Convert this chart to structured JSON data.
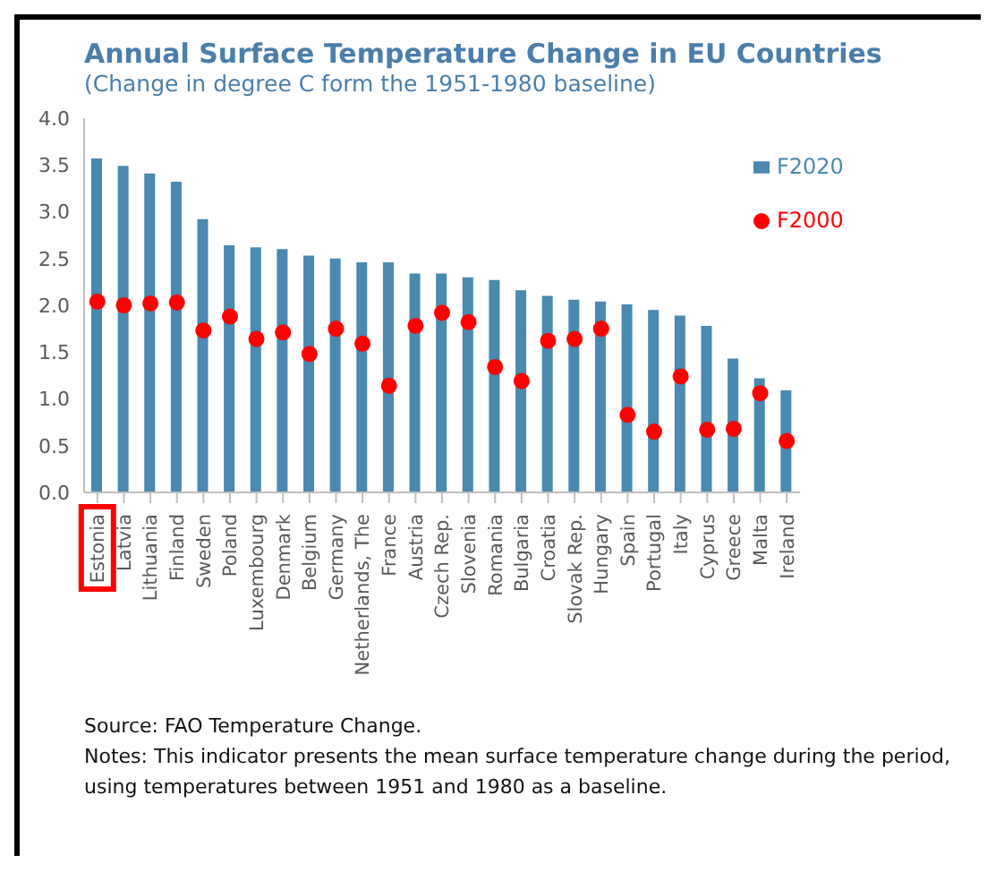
{
  "chart_data": {
    "type": "bar",
    "title": "Annual Surface Temperature Change in EU Countries",
    "subtitle": "(Change in degree C form the 1951-1980 baseline)",
    "categories": [
      "Estonia",
      "Latvia",
      "Lithuania",
      "Finland",
      "Sweden",
      "Poland",
      "Luxembourg",
      "Denmark",
      "Belgium",
      "Germany",
      "Netherlands, The",
      "France",
      "Austria",
      "Czech Rep.",
      "Slovenia",
      "Romania",
      "Bulgaria",
      "Croatia",
      "Slovak Rep.",
      "Hungary",
      "Spain",
      "Portugal",
      "Italy",
      "Cyprus",
      "Greece",
      "Malta",
      "Ireland"
    ],
    "series": [
      {
        "name": "F2020",
        "color": "#4a89b0",
        "values": [
          3.57,
          3.49,
          3.41,
          3.32,
          2.92,
          2.64,
          2.62,
          2.6,
          2.53,
          2.5,
          2.46,
          2.46,
          2.34,
          2.34,
          2.3,
          2.27,
          2.16,
          2.1,
          2.06,
          2.04,
          2.01,
          1.95,
          1.89,
          1.78,
          1.43,
          1.22,
          1.09
        ]
      },
      {
        "name": "F2000",
        "type": "scatter",
        "color": "#ff0000",
        "marker": "circle",
        "values": [
          2.04,
          2.0,
          2.02,
          2.03,
          1.73,
          1.88,
          1.64,
          1.71,
          1.48,
          1.75,
          1.59,
          1.14,
          1.78,
          1.92,
          1.82,
          1.34,
          1.19,
          1.62,
          1.64,
          1.75,
          0.83,
          0.65,
          1.24,
          0.67,
          0.68,
          1.06,
          0.55
        ]
      }
    ],
    "ylim": [
      0,
      4
    ],
    "yticks": [
      {
        "value": 0,
        "label": "0.0"
      },
      {
        "value": 0.5,
        "label": "0.5"
      },
      {
        "value": 1,
        "label": "1.0"
      },
      {
        "value": 1.5,
        "label": "1.5"
      },
      {
        "value": 2,
        "label": "2.0"
      },
      {
        "value": 2.5,
        "label": "2.5"
      },
      {
        "value": 3,
        "label": "3.0"
      },
      {
        "value": 3.5,
        "label": "3.5"
      },
      {
        "value": 4,
        "label": "4.0"
      }
    ],
    "grid": false,
    "legend": "top right",
    "annotations": [
      "Source: FAO Temperature Change.",
      "Notes: This indicator presents the mean surface temperature change during the period, using temperatures between 1951 and 1980 as a baseline."
    ]
  }
}
